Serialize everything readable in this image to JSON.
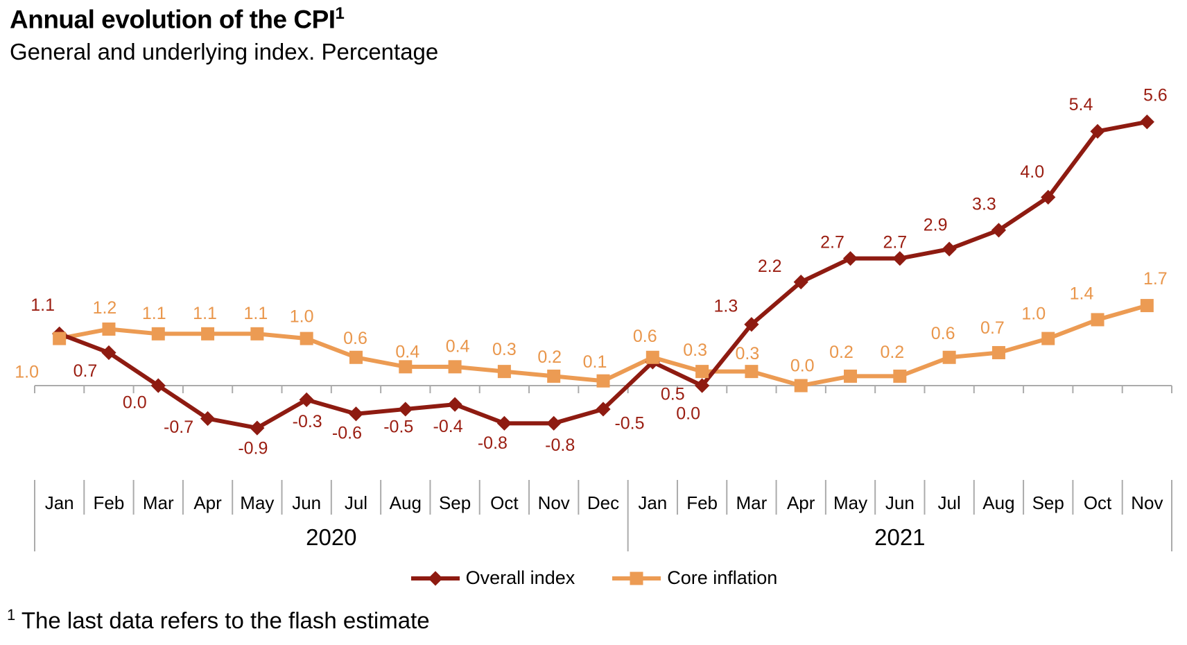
{
  "header": {
    "title": "Annual evolution of the CPI",
    "title_superscript": "1",
    "subtitle": "General and underlying index. Percentage"
  },
  "chart_data": {
    "type": "line",
    "title": "Annual evolution of the CPI",
    "subtitle": "General and underlying index. Percentage",
    "categories": [
      "Jan",
      "Feb",
      "Mar",
      "Apr",
      "May",
      "Jun",
      "Jul",
      "Aug",
      "Sep",
      "Oct",
      "Nov",
      "Dec",
      "Jan",
      "Feb",
      "Mar",
      "Apr",
      "May",
      "Jun",
      "Jul",
      "Aug",
      "Sep",
      "Oct",
      "Nov"
    ],
    "year_groups": [
      {
        "label": "2020",
        "start_index": 0,
        "end_index": 11
      },
      {
        "label": "2021",
        "start_index": 12,
        "end_index": 22
      }
    ],
    "series": [
      {
        "name": "Overall index",
        "marker": "diamond",
        "color": "#8E1B11",
        "label_color": "#9A1D11",
        "values": [
          1.1,
          0.7,
          0.0,
          -0.7,
          -0.9,
          -0.3,
          -0.6,
          -0.5,
          -0.4,
          -0.8,
          -0.8,
          -0.5,
          0.5,
          0.0,
          1.3,
          2.2,
          2.7,
          2.7,
          2.9,
          3.3,
          4.0,
          5.4,
          5.6
        ]
      },
      {
        "name": "Core inflation",
        "marker": "square",
        "color": "#EC9B53",
        "label_color": "#E9964B",
        "values": [
          1.0,
          1.2,
          1.1,
          1.1,
          1.1,
          1.0,
          0.6,
          0.4,
          0.4,
          0.3,
          0.2,
          0.1,
          0.6,
          0.3,
          0.3,
          0.0,
          0.2,
          0.2,
          0.6,
          0.7,
          1.0,
          1.4,
          1.7
        ]
      }
    ],
    "value_labels": "one_decimal",
    "ylim": [
      -1.2,
      5.9
    ],
    "baseline": 0,
    "grid": false,
    "axis_color": "#ABABAB",
    "legend_position": "bottom"
  },
  "footnote": {
    "superscript": "1",
    "text": "The last data refers to the flash estimate"
  }
}
